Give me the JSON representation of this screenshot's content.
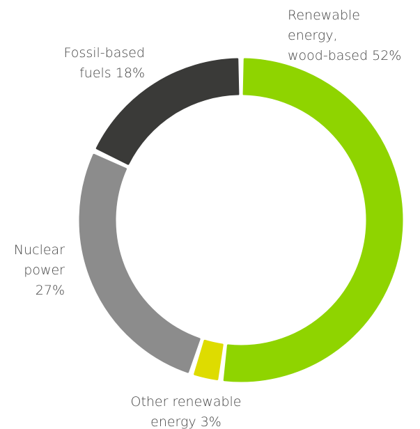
{
  "chart_data": {
    "type": "donut",
    "categories": [
      "Renewable\nenergy,\nwood-based",
      "Other renewable\nenergy",
      "Nuclear\npower",
      "Fossil-based\nfuels"
    ],
    "values": [
      52,
      3,
      27,
      18
    ],
    "value_labels": [
      "52%",
      "3%",
      "27%",
      "18%"
    ],
    "colors": [
      "#8fd400",
      "#dedc00",
      "#8c8c8c",
      "#3a3a38"
    ]
  }
}
